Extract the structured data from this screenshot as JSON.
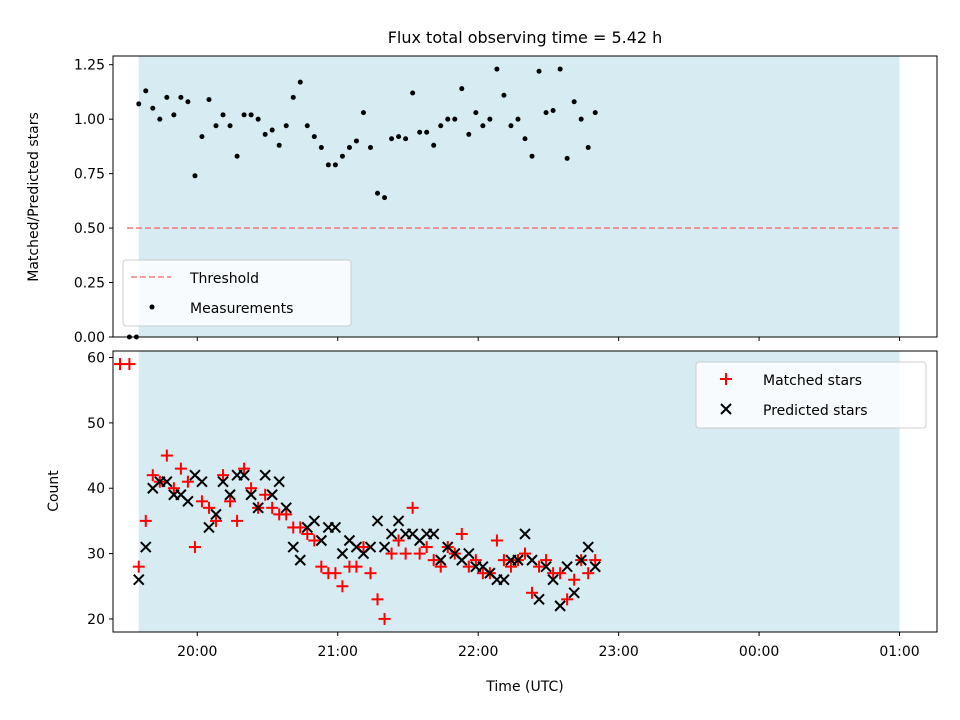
{
  "chart_data": [
    {
      "type": "scatter",
      "title": "Flux total observing time = 5.42 h",
      "ylabel": "Matched/Predicted stars",
      "xlabel": "",
      "xlim": [
        "19:24",
        "01:16"
      ],
      "ylim": [
        0,
        1.29
      ],
      "yticks": [
        "0.00",
        "0.25",
        "0.50",
        "0.75",
        "1.00",
        "1.25"
      ],
      "grid": false,
      "legend_position": "lower-left",
      "shaded_interval": [
        "19:35",
        "01:00"
      ],
      "threshold": {
        "name": "Threshold",
        "value": 0.5,
        "x": [
          "19:30",
          "01:00"
        ],
        "color": "#f08080"
      },
      "series": [
        {
          "name": "Measurements",
          "color": "#000000",
          "points": [
            [
              "19:31",
              0.0
            ],
            [
              "19:34",
              0.0
            ],
            [
              "19:35",
              1.07
            ],
            [
              "19:38",
              1.13
            ],
            [
              "19:41",
              1.05
            ],
            [
              "19:44",
              1.0
            ],
            [
              "19:47",
              1.1
            ],
            [
              "19:50",
              1.02
            ],
            [
              "19:53",
              1.1
            ],
            [
              "19:56",
              1.08
            ],
            [
              "19:59",
              0.74
            ],
            [
              "20:02",
              0.92
            ],
            [
              "20:05",
              1.09
            ],
            [
              "20:08",
              0.97
            ],
            [
              "20:11",
              1.02
            ],
            [
              "20:14",
              0.97
            ],
            [
              "20:17",
              0.83
            ],
            [
              "20:20",
              1.02
            ],
            [
              "20:23",
              1.02
            ],
            [
              "20:26",
              1.0
            ],
            [
              "20:29",
              0.93
            ],
            [
              "20:32",
              0.95
            ],
            [
              "20:35",
              0.88
            ],
            [
              "20:38",
              0.97
            ],
            [
              "20:41",
              1.1
            ],
            [
              "20:44",
              1.17
            ],
            [
              "20:47",
              0.97
            ],
            [
              "20:50",
              0.92
            ],
            [
              "20:53",
              0.87
            ],
            [
              "20:56",
              0.79
            ],
            [
              "20:59",
              0.79
            ],
            [
              "21:02",
              0.83
            ],
            [
              "21:05",
              0.87
            ],
            [
              "21:08",
              0.9
            ],
            [
              "21:11",
              1.03
            ],
            [
              "21:14",
              0.87
            ],
            [
              "21:17",
              0.66
            ],
            [
              "21:20",
              0.64
            ],
            [
              "21:23",
              0.91
            ],
            [
              "21:26",
              0.92
            ],
            [
              "21:29",
              0.91
            ],
            [
              "21:32",
              1.12
            ],
            [
              "21:35",
              0.94
            ],
            [
              "21:38",
              0.94
            ],
            [
              "21:41",
              0.88
            ],
            [
              "21:44",
              0.97
            ],
            [
              "21:47",
              1.0
            ],
            [
              "21:50",
              1.0
            ],
            [
              "21:53",
              1.14
            ],
            [
              "21:56",
              0.93
            ],
            [
              "21:59",
              1.03
            ],
            [
              "22:02",
              0.97
            ],
            [
              "22:05",
              1.0
            ],
            [
              "22:08",
              1.23
            ],
            [
              "22:11",
              1.11
            ],
            [
              "22:14",
              0.97
            ],
            [
              "22:17",
              1.0
            ],
            [
              "22:20",
              0.91
            ],
            [
              "22:23",
              0.83
            ],
            [
              "22:26",
              1.22
            ],
            [
              "22:29",
              1.03
            ],
            [
              "22:32",
              1.04
            ],
            [
              "22:35",
              1.23
            ],
            [
              "22:38",
              0.82
            ],
            [
              "22:41",
              1.08
            ],
            [
              "22:44",
              1.0
            ],
            [
              "22:47",
              0.87
            ],
            [
              "22:50",
              1.03
            ]
          ]
        }
      ]
    },
    {
      "type": "scatter",
      "title": "",
      "xlabel": "Time (UTC)",
      "ylabel": "Count",
      "xlim": [
        "19:24",
        "01:16"
      ],
      "xticks": [
        "20:00",
        "21:00",
        "22:00",
        "23:00",
        "00:00",
        "01:00"
      ],
      "ylim": [
        18,
        61
      ],
      "yticks": [
        "20",
        "30",
        "40",
        "50",
        "60"
      ],
      "grid": false,
      "legend_position": "upper-right",
      "shaded_interval": [
        "19:35",
        "01:00"
      ],
      "series": [
        {
          "name": "Matched stars",
          "marker": "+",
          "color": "#ff0000",
          "points": [
            [
              "19:27",
              59
            ],
            [
              "19:31",
              59
            ],
            [
              "19:35",
              28
            ],
            [
              "19:38",
              35
            ],
            [
              "19:41",
              42
            ],
            [
              "19:44",
              41
            ],
            [
              "19:47",
              45
            ],
            [
              "19:50",
              40
            ],
            [
              "19:53",
              43
            ],
            [
              "19:56",
              41
            ],
            [
              "19:59",
              31
            ],
            [
              "20:02",
              38
            ],
            [
              "20:05",
              37
            ],
            [
              "20:08",
              35
            ],
            [
              "20:11",
              42
            ],
            [
              "20:14",
              38
            ],
            [
              "20:17",
              35
            ],
            [
              "20:20",
              43
            ],
            [
              "20:23",
              40
            ],
            [
              "20:26",
              37
            ],
            [
              "20:29",
              39
            ],
            [
              "20:32",
              37
            ],
            [
              "20:35",
              36
            ],
            [
              "20:38",
              36
            ],
            [
              "20:41",
              34
            ],
            [
              "20:44",
              34
            ],
            [
              "20:47",
              33
            ],
            [
              "20:50",
              32
            ],
            [
              "20:53",
              28
            ],
            [
              "20:56",
              27
            ],
            [
              "20:59",
              27
            ],
            [
              "21:02",
              25
            ],
            [
              "21:05",
              28
            ],
            [
              "21:08",
              28
            ],
            [
              "21:11",
              31
            ],
            [
              "21:14",
              27
            ],
            [
              "21:17",
              23
            ],
            [
              "21:20",
              20
            ],
            [
              "21:23",
              30
            ],
            [
              "21:26",
              32
            ],
            [
              "21:29",
              30
            ],
            [
              "21:32",
              37
            ],
            [
              "21:35",
              30
            ],
            [
              "21:38",
              31
            ],
            [
              "21:41",
              29
            ],
            [
              "21:44",
              28
            ],
            [
              "21:47",
              31
            ],
            [
              "21:50",
              30
            ],
            [
              "21:53",
              33
            ],
            [
              "21:56",
              28
            ],
            [
              "21:59",
              29
            ],
            [
              "22:02",
              27
            ],
            [
              "22:05",
              27
            ],
            [
              "22:08",
              32
            ],
            [
              "22:11",
              29
            ],
            [
              "22:14",
              28
            ],
            [
              "22:17",
              29
            ],
            [
              "22:20",
              30
            ],
            [
              "22:23",
              24
            ],
            [
              "22:26",
              28
            ],
            [
              "22:29",
              29
            ],
            [
              "22:32",
              27
            ],
            [
              "22:35",
              27
            ],
            [
              "22:38",
              23
            ],
            [
              "22:41",
              26
            ],
            [
              "22:44",
              29
            ],
            [
              "22:47",
              27
            ],
            [
              "22:50",
              29
            ]
          ]
        },
        {
          "name": "Predicted stars",
          "marker": "x",
          "color": "#000000",
          "points": [
            [
              "19:35",
              26
            ],
            [
              "19:38",
              31
            ],
            [
              "19:41",
              40
            ],
            [
              "19:44",
              41
            ],
            [
              "19:47",
              41
            ],
            [
              "19:50",
              39
            ],
            [
              "19:53",
              39
            ],
            [
              "19:56",
              38
            ],
            [
              "19:59",
              42
            ],
            [
              "20:02",
              41
            ],
            [
              "20:05",
              34
            ],
            [
              "20:08",
              36
            ],
            [
              "20:11",
              41
            ],
            [
              "20:14",
              39
            ],
            [
              "20:17",
              42
            ],
            [
              "20:20",
              42
            ],
            [
              "20:23",
              39
            ],
            [
              "20:26",
              37
            ],
            [
              "20:29",
              42
            ],
            [
              "20:32",
              39
            ],
            [
              "20:35",
              41
            ],
            [
              "20:38",
              37
            ],
            [
              "20:41",
              31
            ],
            [
              "20:44",
              29
            ],
            [
              "20:47",
              34
            ],
            [
              "20:50",
              35
            ],
            [
              "20:53",
              32
            ],
            [
              "20:56",
              34
            ],
            [
              "20:59",
              34
            ],
            [
              "21:02",
              30
            ],
            [
              "21:05",
              32
            ],
            [
              "21:08",
              31
            ],
            [
              "21:11",
              30
            ],
            [
              "21:14",
              31
            ],
            [
              "21:17",
              35
            ],
            [
              "21:20",
              31
            ],
            [
              "21:23",
              33
            ],
            [
              "21:26",
              35
            ],
            [
              "21:29",
              33
            ],
            [
              "21:32",
              33
            ],
            [
              "21:35",
              32
            ],
            [
              "21:38",
              33
            ],
            [
              "21:41",
              33
            ],
            [
              "21:44",
              29
            ],
            [
              "21:47",
              31
            ],
            [
              "21:50",
              30
            ],
            [
              "21:53",
              29
            ],
            [
              "21:56",
              30
            ],
            [
              "21:59",
              28
            ],
            [
              "22:02",
              28
            ],
            [
              "22:05",
              27
            ],
            [
              "22:08",
              26
            ],
            [
              "22:11",
              26
            ],
            [
              "22:14",
              29
            ],
            [
              "22:17",
              29
            ],
            [
              "22:20",
              33
            ],
            [
              "22:23",
              29
            ],
            [
              "22:26",
              23
            ],
            [
              "22:29",
              28
            ],
            [
              "22:32",
              26
            ],
            [
              "22:35",
              22
            ],
            [
              "22:38",
              28
            ],
            [
              "22:41",
              24
            ],
            [
              "22:44",
              29
            ],
            [
              "22:47",
              31
            ],
            [
              "22:50",
              28
            ]
          ]
        }
      ]
    }
  ]
}
